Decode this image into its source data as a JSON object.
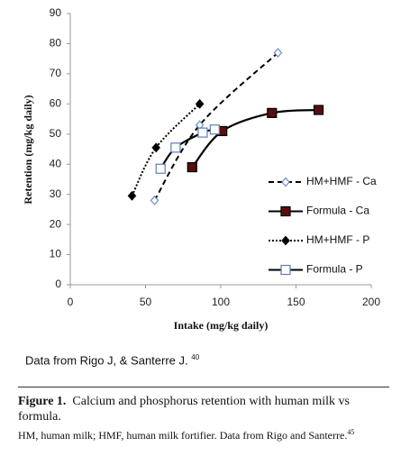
{
  "chart_data": {
    "type": "line",
    "y_label": "Retention (mg/kg daily)",
    "x_label": "Intake (mg/kg daily)",
    "xlim": [
      0,
      200
    ],
    "xticks": [
      0,
      50,
      100,
      150,
      200
    ],
    "ylim": [
      0,
      90
    ],
    "yticks": [
      0,
      10,
      20,
      30,
      40,
      50,
      60,
      70,
      80,
      90
    ],
    "grid": false,
    "legend": "lower right",
    "series": [
      {
        "name": "HM+HMF - Ca",
        "color": "#000000",
        "line_style": "dashed",
        "marker": "diamond",
        "marker_fill": "#ffffff",
        "marker_color": "#6a8cc0",
        "x": [
          56,
          86,
          138
        ],
        "values": [
          28,
          53,
          77
        ]
      },
      {
        "name": "Formula - Ca",
        "color": "#000000",
        "line_style": "solid",
        "marker": "square",
        "marker_fill": "#5a0e0e",
        "marker_color": "#000000",
        "x": [
          81,
          101,
          134,
          165
        ],
        "values": [
          39,
          51,
          57,
          58
        ]
      },
      {
        "name": "HM+HMF - P",
        "color": "#000000",
        "line_style": "dotted",
        "marker": "diamond",
        "marker_fill": "#000000",
        "marker_color": "#000000",
        "x": [
          41,
          57,
          86
        ],
        "values": [
          29.5,
          45.5,
          60
        ]
      },
      {
        "name": "Formula - P",
        "color": "#000000",
        "line_style": "solid",
        "marker": "square",
        "marker_fill": "#ffffff",
        "marker_color": "#5b7db5",
        "x": [
          60,
          70,
          88,
          96
        ],
        "values": [
          38.5,
          45.5,
          50.5,
          51.5
        ]
      }
    ]
  },
  "note": {
    "text": "Data from Rigo J, & Santerre J.",
    "ref": "40"
  },
  "caption": {
    "label": "Figure 1.",
    "text": "Calcium and phosphorus retention with human milk vs formula.",
    "footnote": "HM, human milk; HMF, human milk fortifier. Data from Rigo and Santerre.",
    "ref": "45"
  }
}
